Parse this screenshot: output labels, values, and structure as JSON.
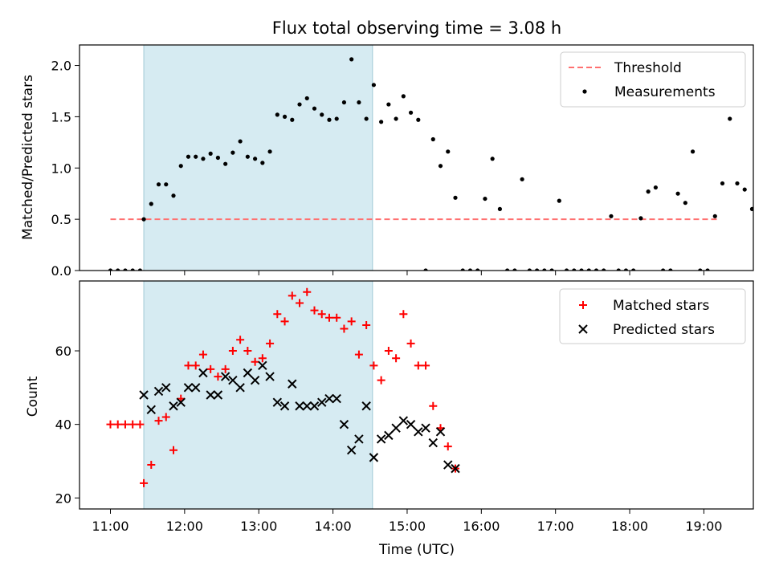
{
  "title": "Flux total observing time = 3.08 h",
  "xlabel": "Time (UTC)",
  "x_ticks": [
    "11:00",
    "12:00",
    "13:00",
    "14:00",
    "15:00",
    "16:00",
    "17:00",
    "18:00",
    "19:00"
  ],
  "colors": {
    "threshold": "#ff7070",
    "measurements": "#000000",
    "matched": "#ff0000",
    "predicted": "#000000",
    "shade": "#add8e6"
  },
  "chart_data": [
    {
      "type": "scatter",
      "ylabel": "Matched/Predicted stars",
      "xlim": [
        "10:35",
        "19:40"
      ],
      "ylim": [
        0,
        2.2
      ],
      "y_ticks": [
        "0.0",
        "0.5",
        "1.0",
        "1.5",
        "2.0"
      ],
      "shaded_span": [
        "11:27",
        "14:32"
      ],
      "legend_position": "upper right",
      "threshold": {
        "label": "Threshold",
        "value": 0.5,
        "x": [
          "11:00",
          "19:12"
        ]
      },
      "series": [
        {
          "name": "Measurements",
          "points": [
            [
              "11:00",
              0.0
            ],
            [
              "11:06",
              0.0
            ],
            [
              "11:12",
              0.0
            ],
            [
              "11:18",
              0.0
            ],
            [
              "11:24",
              0.0
            ],
            [
              "11:27",
              0.5
            ],
            [
              "11:33",
              0.65
            ],
            [
              "11:39",
              0.84
            ],
            [
              "11:45",
              0.84
            ],
            [
              "11:51",
              0.73
            ],
            [
              "11:57",
              1.02
            ],
            [
              "12:03",
              1.11
            ],
            [
              "12:09",
              1.11
            ],
            [
              "12:15",
              1.09
            ],
            [
              "12:21",
              1.14
            ],
            [
              "12:27",
              1.1
            ],
            [
              "12:33",
              1.04
            ],
            [
              "12:39",
              1.15
            ],
            [
              "12:45",
              1.26
            ],
            [
              "12:51",
              1.11
            ],
            [
              "12:57",
              1.09
            ],
            [
              "13:03",
              1.05
            ],
            [
              "13:09",
              1.16
            ],
            [
              "13:15",
              1.52
            ],
            [
              "13:21",
              1.5
            ],
            [
              "13:27",
              1.47
            ],
            [
              "13:33",
              1.62
            ],
            [
              "13:39",
              1.68
            ],
            [
              "13:45",
              1.58
            ],
            [
              "13:51",
              1.52
            ],
            [
              "13:57",
              1.47
            ],
            [
              "14:03",
              1.48
            ],
            [
              "14:09",
              1.64
            ],
            [
              "14:15",
              2.06
            ],
            [
              "14:21",
              1.64
            ],
            [
              "14:27",
              1.48
            ],
            [
              "14:33",
              1.81
            ],
            [
              "14:39",
              1.45
            ],
            [
              "14:45",
              1.62
            ],
            [
              "14:51",
              1.48
            ],
            [
              "14:57",
              1.7
            ],
            [
              "15:03",
              1.54
            ],
            [
              "15:09",
              1.47
            ],
            [
              "15:15",
              0.0
            ],
            [
              "15:21",
              1.28
            ],
            [
              "15:27",
              1.02
            ],
            [
              "15:33",
              1.16
            ],
            [
              "15:39",
              0.71
            ],
            [
              "15:45",
              0.0
            ],
            [
              "15:51",
              0.0
            ],
            [
              "15:57",
              0.0
            ],
            [
              "16:03",
              0.7
            ],
            [
              "16:09",
              1.09
            ],
            [
              "16:15",
              0.6
            ],
            [
              "16:21",
              0.0
            ],
            [
              "16:27",
              0.0
            ],
            [
              "16:33",
              0.89
            ],
            [
              "16:39",
              0.0
            ],
            [
              "16:45",
              0.0
            ],
            [
              "16:51",
              0.0
            ],
            [
              "16:57",
              0.0
            ],
            [
              "17:03",
              0.68
            ],
            [
              "17:09",
              0.0
            ],
            [
              "17:15",
              0.0
            ],
            [
              "17:21",
              0.0
            ],
            [
              "17:27",
              0.0
            ],
            [
              "17:33",
              0.0
            ],
            [
              "17:39",
              0.0
            ],
            [
              "17:45",
              0.53
            ],
            [
              "17:51",
              0.0
            ],
            [
              "17:57",
              0.0
            ],
            [
              "18:03",
              0.0
            ],
            [
              "18:09",
              0.51
            ],
            [
              "18:15",
              0.77
            ],
            [
              "18:21",
              0.81
            ],
            [
              "18:27",
              0.0
            ],
            [
              "18:33",
              0.0
            ],
            [
              "18:39",
              0.75
            ],
            [
              "18:45",
              0.66
            ],
            [
              "18:51",
              1.16
            ],
            [
              "18:57",
              0.0
            ],
            [
              "19:03",
              0.0
            ],
            [
              "19:09",
              0.53
            ],
            [
              "19:15",
              0.85
            ],
            [
              "19:21",
              1.48
            ],
            [
              "19:27",
              0.85
            ],
            [
              "19:33",
              0.79
            ],
            [
              "19:39",
              0.6
            ]
          ]
        }
      ]
    },
    {
      "type": "scatter",
      "ylabel": "Count",
      "xlim": [
        "10:35",
        "19:40"
      ],
      "ylim": [
        17,
        79
      ],
      "y_ticks": [
        "20",
        "40",
        "60"
      ],
      "shaded_span": [
        "11:27",
        "14:32"
      ],
      "legend_position": "upper right",
      "series": [
        {
          "name": "Matched stars",
          "marker": "plus",
          "points": [
            [
              "11:00",
              40
            ],
            [
              "11:06",
              40
            ],
            [
              "11:12",
              40
            ],
            [
              "11:18",
              40
            ],
            [
              "11:24",
              40
            ],
            [
              "11:27",
              24
            ],
            [
              "11:33",
              29
            ],
            [
              "11:39",
              41
            ],
            [
              "11:45",
              42
            ],
            [
              "11:51",
              33
            ],
            [
              "11:57",
              47
            ],
            [
              "12:03",
              56
            ],
            [
              "12:09",
              56
            ],
            [
              "12:15",
              59
            ],
            [
              "12:21",
              55
            ],
            [
              "12:27",
              53
            ],
            [
              "12:33",
              55
            ],
            [
              "12:39",
              60
            ],
            [
              "12:45",
              63
            ],
            [
              "12:51",
              60
            ],
            [
              "12:57",
              57
            ],
            [
              "13:03",
              58
            ],
            [
              "13:09",
              62
            ],
            [
              "13:15",
              70
            ],
            [
              "13:21",
              68
            ],
            [
              "13:27",
              75
            ],
            [
              "13:33",
              73
            ],
            [
              "13:39",
              76
            ],
            [
              "13:45",
              71
            ],
            [
              "13:51",
              70
            ],
            [
              "13:57",
              69
            ],
            [
              "14:03",
              69
            ],
            [
              "14:09",
              66
            ],
            [
              "14:15",
              68
            ],
            [
              "14:21",
              59
            ],
            [
              "14:27",
              67
            ],
            [
              "14:33",
              56
            ],
            [
              "14:39",
              52
            ],
            [
              "14:45",
              60
            ],
            [
              "14:51",
              58
            ],
            [
              "14:57",
              70
            ],
            [
              "15:03",
              62
            ],
            [
              "15:09",
              56
            ],
            [
              "15:15",
              56
            ],
            [
              "15:21",
              45
            ],
            [
              "15:27",
              39
            ],
            [
              "15:33",
              34
            ],
            [
              "15:39",
              28
            ]
          ]
        },
        {
          "name": "Predicted stars",
          "marker": "x",
          "points": [
            [
              "11:27",
              48
            ],
            [
              "11:33",
              44
            ],
            [
              "11:39",
              49
            ],
            [
              "11:45",
              50
            ],
            [
              "11:51",
              45
            ],
            [
              "11:57",
              46
            ],
            [
              "12:03",
              50
            ],
            [
              "12:09",
              50
            ],
            [
              "12:15",
              54
            ],
            [
              "12:21",
              48
            ],
            [
              "12:27",
              48
            ],
            [
              "12:33",
              53
            ],
            [
              "12:39",
              52
            ],
            [
              "12:45",
              50
            ],
            [
              "12:51",
              54
            ],
            [
              "12:57",
              52
            ],
            [
              "13:03",
              56
            ],
            [
              "13:09",
              53
            ],
            [
              "13:15",
              46
            ],
            [
              "13:21",
              45
            ],
            [
              "13:27",
              51
            ],
            [
              "13:33",
              45
            ],
            [
              "13:39",
              45
            ],
            [
              "13:45",
              45
            ],
            [
              "13:51",
              46
            ],
            [
              "13:57",
              47
            ],
            [
              "14:03",
              47
            ],
            [
              "14:09",
              40
            ],
            [
              "14:15",
              33
            ],
            [
              "14:21",
              36
            ],
            [
              "14:27",
              45
            ],
            [
              "14:33",
              31
            ],
            [
              "14:39",
              36
            ],
            [
              "14:45",
              37
            ],
            [
              "14:51",
              39
            ],
            [
              "14:57",
              41
            ],
            [
              "15:03",
              40
            ],
            [
              "15:09",
              38
            ],
            [
              "15:15",
              39
            ],
            [
              "15:21",
              35
            ],
            [
              "15:27",
              38
            ],
            [
              "15:33",
              29
            ],
            [
              "15:39",
              28
            ]
          ]
        }
      ]
    }
  ]
}
